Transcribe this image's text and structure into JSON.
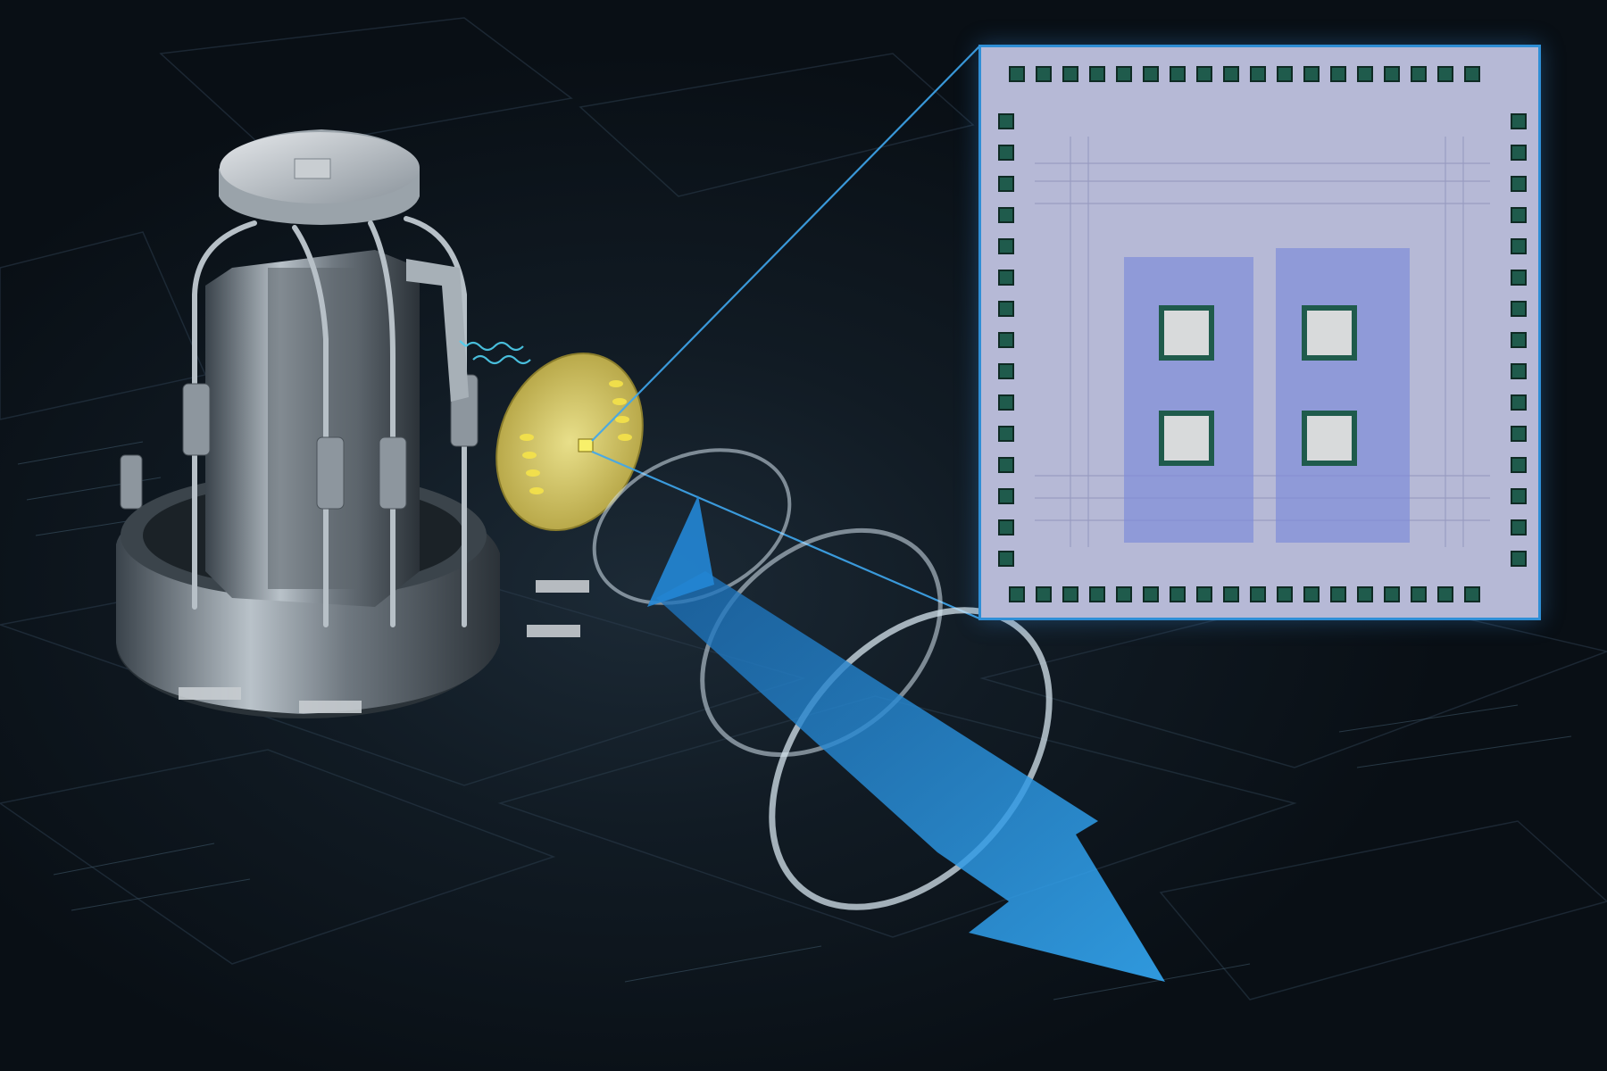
{
  "figure": {
    "description_free": true,
    "colors": {
      "background": "#0b1219",
      "accent_blue": "#2f8fd6",
      "arrow_blue": "#1e8fe0",
      "chip_die": "#b4b7d4",
      "pad_green": "#1f5b4c",
      "metal": "#8d969e",
      "pcb_gold": "#d9c24a"
    },
    "icons": {
      "cryostat": "cryostat-assembly",
      "chip": "qubit-chip-inset",
      "arrow": "polarization-arrow",
      "rings": "photon-rings",
      "wave": "microwave-wave-icon"
    }
  }
}
